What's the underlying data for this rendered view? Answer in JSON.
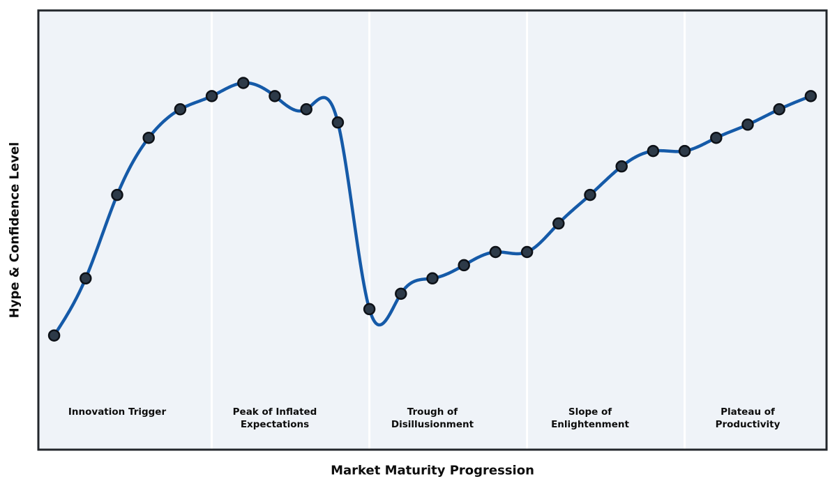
{
  "figure": {
    "background": "#ffffff",
    "plot_background": "#eff3f8",
    "spine_color": "#22262b",
    "text_color": "#0d0d0d"
  },
  "chart_data": {
    "type": "line",
    "title": "",
    "xlabel": "Market Maturity Progression",
    "ylabel": "Hype & Confidence Level",
    "x": [
      0,
      1,
      2,
      3,
      4,
      5,
      6,
      7,
      8,
      9,
      10,
      11,
      12,
      13,
      14,
      15,
      16,
      17,
      18,
      19,
      20,
      21,
      22,
      23,
      24
    ],
    "values": [
      26,
      39,
      58,
      71,
      77.5,
      80.5,
      83.5,
      80.5,
      77.5,
      74.5,
      32,
      35.5,
      39,
      42,
      45,
      45,
      51.5,
      58,
      64.5,
      68,
      68,
      71,
      74,
      77.5,
      80.5
    ],
    "xlim": [
      -0.5,
      24.5
    ],
    "ylim": [
      0,
      100
    ],
    "grid": false,
    "legend": null,
    "curve": "cubic-spline",
    "line_color": "#155aa8",
    "marker": {
      "shape": "circle",
      "fill": "#2d3a48",
      "edge": "#0d1117"
    },
    "phase_divider_color": "#ffffff",
    "divider_positions_x": [
      5,
      10,
      15,
      20
    ],
    "phases": [
      {
        "label": "Innovation Trigger",
        "start_index": 0,
        "end_index": 4,
        "center_x": 2
      },
      {
        "label": "Peak of Inflated\nExpectations",
        "start_index": 5,
        "end_index": 9,
        "center_x": 7
      },
      {
        "label": "Trough of\nDisillusionment",
        "start_index": 10,
        "end_index": 14,
        "center_x": 12
      },
      {
        "label": "Slope of\nEnlightenment",
        "start_index": 15,
        "end_index": 19,
        "center_x": 17
      },
      {
        "label": "Plateau of\nProductivity",
        "start_index": 20,
        "end_index": 24,
        "center_x": 22
      }
    ]
  }
}
